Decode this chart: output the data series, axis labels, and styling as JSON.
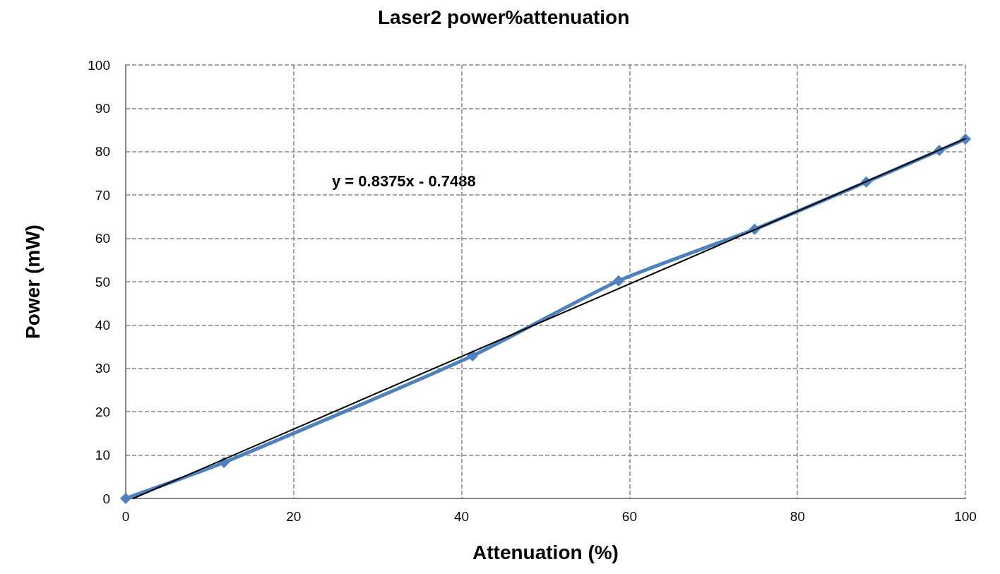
{
  "chart_data": {
    "type": "line",
    "title": "Laser2 power%attenuation",
    "xlabel": "Attenuation (%)",
    "ylabel": "Power (mW)",
    "annotations": [
      "y = 0.8375x - 0.7488"
    ],
    "series": [
      {
        "color": "#4f81bd",
        "x": [
          0,
          11.7,
          41.3,
          58.7,
          74.9,
          88.2,
          96.9,
          100
        ],
        "values": [
          0,
          8.3,
          32.9,
          50.2,
          62.1,
          73.0,
          80.3,
          82.9
        ],
        "marker": "diamond"
      },
      {
        "color": "#000000",
        "x": [
          0.9,
          100
        ],
        "values": [
          0,
          83
        ],
        "marker": "none"
      }
    ],
    "xlim": [
      0,
      100
    ],
    "xticks": [
      0,
      20,
      40,
      60,
      80,
      100
    ],
    "ylim": [
      0,
      100
    ],
    "yticks": [
      0,
      10,
      20,
      30,
      40,
      50,
      60,
      70,
      80,
      90,
      100
    ],
    "grid": true,
    "line_style": "solid"
  }
}
